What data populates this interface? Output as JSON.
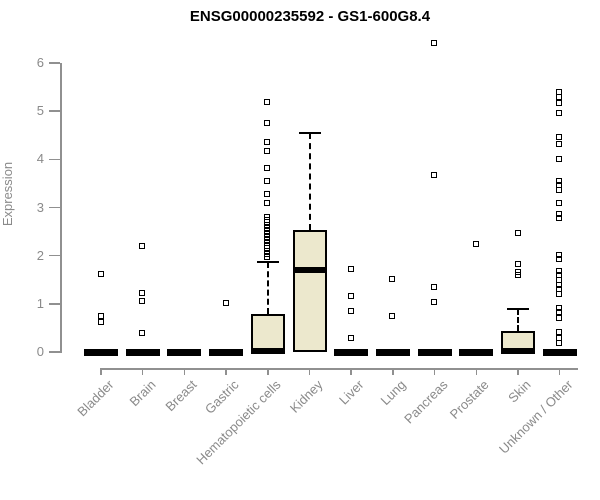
{
  "chart_data": {
    "type": "boxplot",
    "title": "ENSG00000235592 - GS1-600G8.4",
    "ylabel": "Expression",
    "xlabel": "",
    "ylim": [
      0,
      6
    ],
    "yticks": [
      0,
      1,
      2,
      3,
      4,
      5,
      6
    ],
    "grid": false,
    "legend": "none",
    "categories": [
      "Bladder",
      "Brain",
      "Breast",
      "Gastric",
      "Hematopoietic cells",
      "Kidney",
      "Liver",
      "Lung",
      "Pancreas",
      "Prostate",
      "Skin",
      "Unknown / Other"
    ],
    "series": [
      {
        "name": "Bladder",
        "collapsed": true,
        "q1": 0,
        "median": 0,
        "q3": 0,
        "whisker_low": 0,
        "whisker_high": 0,
        "outliers": [
          1.6,
          0.73,
          0.62
        ]
      },
      {
        "name": "Brain",
        "collapsed": true,
        "q1": 0,
        "median": 0,
        "q3": 0,
        "whisker_low": 0,
        "whisker_high": 0,
        "outliers": [
          2.2,
          1.22,
          1.04,
          0.39
        ]
      },
      {
        "name": "Breast",
        "collapsed": true,
        "q1": 0,
        "median": 0,
        "q3": 0,
        "whisker_low": 0,
        "whisker_high": 0,
        "outliers": []
      },
      {
        "name": "Gastric",
        "collapsed": true,
        "q1": 0,
        "median": 0,
        "q3": 0,
        "whisker_low": 0,
        "whisker_high": 0,
        "outliers": [
          1.0
        ]
      },
      {
        "name": "Hematopoietic cells",
        "collapsed": false,
        "q1": 0,
        "median": 0.02,
        "q3": 0.78,
        "whisker_low": 0,
        "whisker_high": 1.87,
        "outliers": [
          5.17,
          4.75,
          4.34,
          4.17,
          3.8,
          3.55,
          3.26,
          3.09,
          2.8,
          2.74,
          2.68,
          2.62,
          2.56,
          2.5,
          2.44,
          2.38,
          2.32,
          2.26,
          2.2,
          2.14,
          2.08,
          2.02,
          1.96
        ]
      },
      {
        "name": "Kidney",
        "collapsed": false,
        "q1": 0,
        "median": 1.7,
        "q3": 2.53,
        "whisker_low": 0,
        "whisker_high": 4.55,
        "outliers": []
      },
      {
        "name": "Liver",
        "collapsed": true,
        "q1": 0,
        "median": 0,
        "q3": 0,
        "whisker_low": 0,
        "whisker_high": 0,
        "outliers": [
          1.72,
          1.16,
          0.85,
          0.28
        ]
      },
      {
        "name": "Lung",
        "collapsed": true,
        "q1": 0,
        "median": 0,
        "q3": 0,
        "whisker_low": 0,
        "whisker_high": 0,
        "outliers": [
          1.5,
          0.73
        ]
      },
      {
        "name": "Pancreas",
        "collapsed": true,
        "q1": 0,
        "median": 0,
        "q3": 0,
        "whisker_low": 0,
        "whisker_high": 0,
        "outliers": [
          6.41,
          3.67,
          1.33,
          1.02
        ]
      },
      {
        "name": "Prostate",
        "collapsed": true,
        "q1": 0,
        "median": 0,
        "q3": 0,
        "whisker_low": 0,
        "whisker_high": 0,
        "outliers": [
          2.24
        ]
      },
      {
        "name": "Skin",
        "collapsed": false,
        "q1": 0,
        "median": 0.02,
        "q3": 0.44,
        "whisker_low": 0,
        "whisker_high": 0.89,
        "outliers": [
          2.47,
          1.81,
          1.65,
          1.58
        ]
      },
      {
        "name": "Unknown / Other",
        "collapsed": true,
        "q1": 0,
        "median": 0,
        "q3": 0,
        "whisker_low": 0,
        "whisker_high": 0,
        "outliers": [
          5.39,
          5.29,
          5.16,
          4.96,
          4.46,
          4.31,
          4.0,
          3.55,
          3.46,
          3.36,
          3.09,
          2.86,
          2.78,
          2.0,
          1.92,
          1.68,
          1.58,
          1.49,
          1.39,
          1.29,
          1.2,
          0.91,
          0.81,
          0.7,
          0.41,
          0.29,
          0.17
        ]
      }
    ],
    "colors": {
      "box_fill": "#ece8cd",
      "box_border": "#000000",
      "median": "#000000",
      "outlier": "#000000",
      "axis": "#909090",
      "axis_text": "#8a8a8a",
      "title_text": "#000000"
    }
  }
}
